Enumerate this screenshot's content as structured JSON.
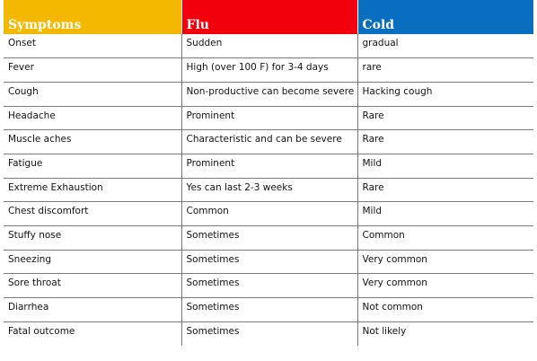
{
  "headers": {
    "symptoms": "Symptoms",
    "flu": "Flu",
    "cold": "Cold"
  },
  "colors": {
    "symptoms_header": "#f5b800",
    "flu_header": "#f2000c",
    "cold_header": "#0a6ec0"
  },
  "rows": [
    {
      "symptom": "Onset",
      "flu": "Sudden",
      "cold": "gradual"
    },
    {
      "symptom": "Fever",
      "flu": "High (over 100 F) for 3-4 days",
      "cold": "rare"
    },
    {
      "symptom": "Cough",
      "flu": "Non-productive can become severe",
      "cold": "Hacking cough"
    },
    {
      "symptom": "Headache",
      "flu": "Prominent",
      "cold": "Rare"
    },
    {
      "symptom": "Muscle aches",
      "flu": "Characteristic and can be severe",
      "cold": "Rare"
    },
    {
      "symptom": "Fatigue",
      "flu": "Prominent",
      "cold": "Mild"
    },
    {
      "symptom": "Extreme Exhaustion",
      "flu": "Yes can last 2-3 weeks",
      "cold": "Rare"
    },
    {
      "symptom": "Chest discomfort",
      "flu": "Common",
      "cold": "Mild"
    },
    {
      "symptom": "Stuffy nose",
      "flu": "Sometimes",
      "cold": "Common"
    },
    {
      "symptom": "Sneezing",
      "flu": "Sometimes",
      "cold": "Very common"
    },
    {
      "symptom": "Sore throat",
      "flu": "Sometimes",
      "cold": "Very common"
    },
    {
      "symptom": "Diarrhea",
      "flu": "Sometimes",
      "cold": "Not common"
    },
    {
      "symptom": "Fatal outcome",
      "flu": "Sometimes",
      "cold": "Not likely"
    }
  ]
}
